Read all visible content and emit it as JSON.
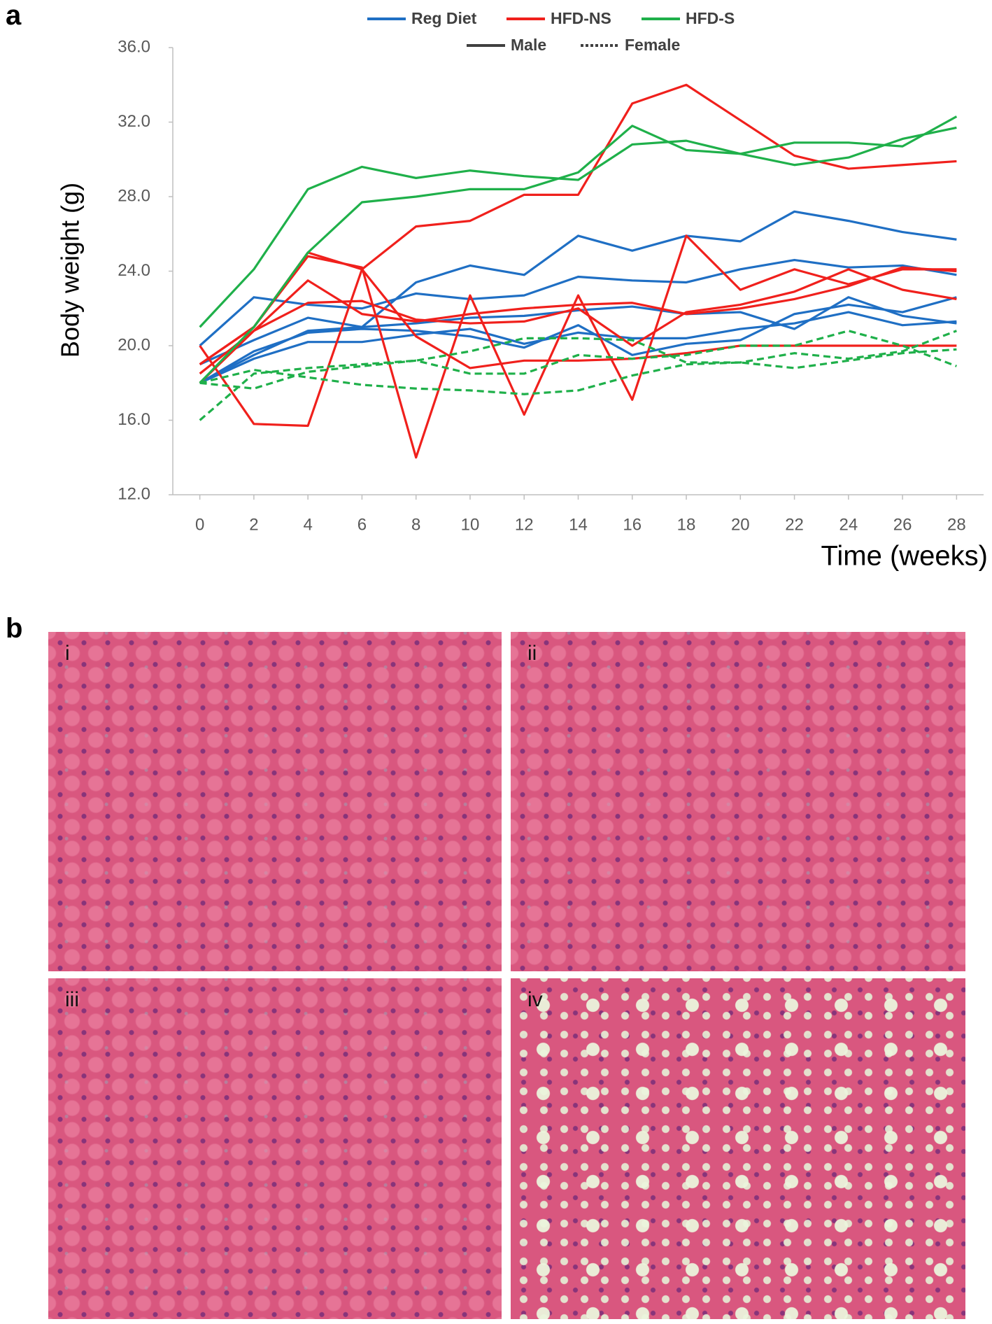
{
  "panel_labels": [
    "a",
    "b"
  ],
  "chart_data": {
    "type": "line",
    "ylabel": "Body weight (g)",
    "xlabel": "Time (weeks)",
    "x": [
      0,
      2,
      4,
      6,
      8,
      10,
      12,
      14,
      16,
      18,
      20,
      22,
      24,
      26,
      28
    ],
    "xlim": [
      -1,
      29
    ],
    "xticks": [
      0,
      2,
      4,
      6,
      8,
      10,
      12,
      14,
      16,
      18,
      20,
      22,
      24,
      26,
      28
    ],
    "ylim": [
      12,
      36
    ],
    "yticks": [
      {
        "value": 12,
        "label": "12.0"
      },
      {
        "value": 16,
        "label": "16.0"
      },
      {
        "value": 20,
        "label": "20.0"
      },
      {
        "value": 24,
        "label": "24.0"
      },
      {
        "value": 28,
        "label": "28.0"
      },
      {
        "value": 32,
        "label": "32.0"
      },
      {
        "value": 36,
        "label": "36.0"
      }
    ],
    "grid": false,
    "legend": [
      {
        "name": "Reg Diet",
        "color": "#1f6fc4"
      },
      {
        "name": "HFD-NS",
        "color": "#f0201c"
      },
      {
        "name": "HFD-S",
        "color": "#1fb04a"
      }
    ],
    "line_styles": [
      {
        "name": "Male",
        "dashed": false
      },
      {
        "name": "Female",
        "dashed": true
      }
    ],
    "series": [
      {
        "color": "#1f6fc4",
        "dashed": false,
        "values": [
          18.0,
          19.5,
          20.8,
          21.0,
          23.4,
          24.3,
          23.8,
          25.9,
          25.1,
          25.9,
          25.6,
          27.2,
          26.7,
          26.1,
          25.7
        ]
      },
      {
        "color": "#1f6fc4",
        "dashed": false,
        "values": [
          20.0,
          22.6,
          22.2,
          22.0,
          22.8,
          22.5,
          22.7,
          23.7,
          23.5,
          23.4,
          24.1,
          24.6,
          24.2,
          24.3,
          23.8
        ]
      },
      {
        "color": "#1f6fc4",
        "dashed": false,
        "values": [
          19.0,
          20.3,
          21.5,
          21.0,
          21.2,
          21.5,
          21.6,
          21.9,
          22.1,
          21.7,
          21.8,
          20.9,
          22.6,
          21.6,
          21.2
        ]
      },
      {
        "color": "#1f6fc4",
        "dashed": false,
        "values": [
          18.0,
          19.7,
          20.7,
          20.9,
          20.8,
          20.5,
          19.9,
          21.1,
          19.5,
          20.1,
          20.3,
          21.7,
          22.2,
          21.8,
          22.6
        ]
      },
      {
        "color": "#1f6fc4",
        "dashed": false,
        "values": [
          18.0,
          19.3,
          20.2,
          20.2,
          20.6,
          20.9,
          20.1,
          20.7,
          20.4,
          20.4,
          20.9,
          21.2,
          21.8,
          21.1,
          21.3
        ]
      },
      {
        "color": "#f0201c",
        "dashed": false,
        "values": [
          19.0,
          21.0,
          25.0,
          24.1,
          26.4,
          26.7,
          28.1,
          28.1,
          33.0,
          34.0,
          32.1,
          30.2,
          29.5,
          29.7,
          29.9
        ]
      },
      {
        "color": "#f0201c",
        "dashed": false,
        "values": [
          19.0,
          21.0,
          24.8,
          24.2,
          14.0,
          22.7,
          16.3,
          22.7,
          17.1,
          25.9,
          23.0,
          24.1,
          23.3,
          24.1,
          24.1
        ]
      },
      {
        "color": "#f0201c",
        "dashed": false,
        "values": [
          18.5,
          20.8,
          23.5,
          21.7,
          21.3,
          21.7,
          22.0,
          22.2,
          22.3,
          21.7,
          22.0,
          22.5,
          23.2,
          24.2,
          24.0
        ]
      },
      {
        "color": "#f0201c",
        "dashed": false,
        "values": [
          20.0,
          15.8,
          15.7,
          24.1,
          20.5,
          18.8,
          19.2,
          19.2,
          19.3,
          19.6,
          20.0,
          20.0,
          20.0,
          20.0,
          20.0
        ]
      },
      {
        "color": "#f0201c",
        "dashed": false,
        "values": [
          18.0,
          20.8,
          22.3,
          22.4,
          21.4,
          21.2,
          21.3,
          22.0,
          20.0,
          21.8,
          22.2,
          22.9,
          24.1,
          23.0,
          22.5
        ]
      },
      {
        "color": "#1fb04a",
        "dashed": false,
        "values": [
          21.0,
          24.1,
          28.4,
          29.6,
          29.0,
          29.4,
          29.1,
          28.9,
          30.8,
          31.0,
          30.3,
          30.9,
          30.9,
          30.7,
          32.3
        ]
      },
      {
        "color": "#1fb04a",
        "dashed": false,
        "values": [
          18.0,
          21.0,
          25.0,
          27.7,
          28.0,
          28.4,
          28.4,
          29.3,
          31.8,
          30.5,
          30.3,
          29.7,
          30.1,
          31.1,
          31.7
        ]
      },
      {
        "color": "#1fb04a",
        "dashed": true,
        "values": [
          16.0,
          18.5,
          18.8,
          19.0,
          19.2,
          19.7,
          20.4,
          20.4,
          20.3,
          19.1,
          19.1,
          19.6,
          19.3,
          19.7,
          20.8
        ]
      },
      {
        "color": "#1fb04a",
        "dashed": true,
        "values": [
          18.0,
          17.7,
          18.6,
          18.9,
          19.2,
          18.5,
          18.5,
          19.5,
          19.3,
          19.5,
          20.0,
          20.0,
          20.8,
          20.0,
          18.9
        ]
      },
      {
        "color": "#1fb04a",
        "dashed": true,
        "values": [
          18.0,
          18.7,
          18.3,
          17.9,
          17.7,
          17.6,
          17.4,
          17.6,
          18.4,
          19.0,
          19.1,
          18.8,
          19.2,
          19.6,
          19.8
        ]
      }
    ]
  },
  "micrographs": [
    "i",
    "ii",
    "iii",
    "iv"
  ]
}
